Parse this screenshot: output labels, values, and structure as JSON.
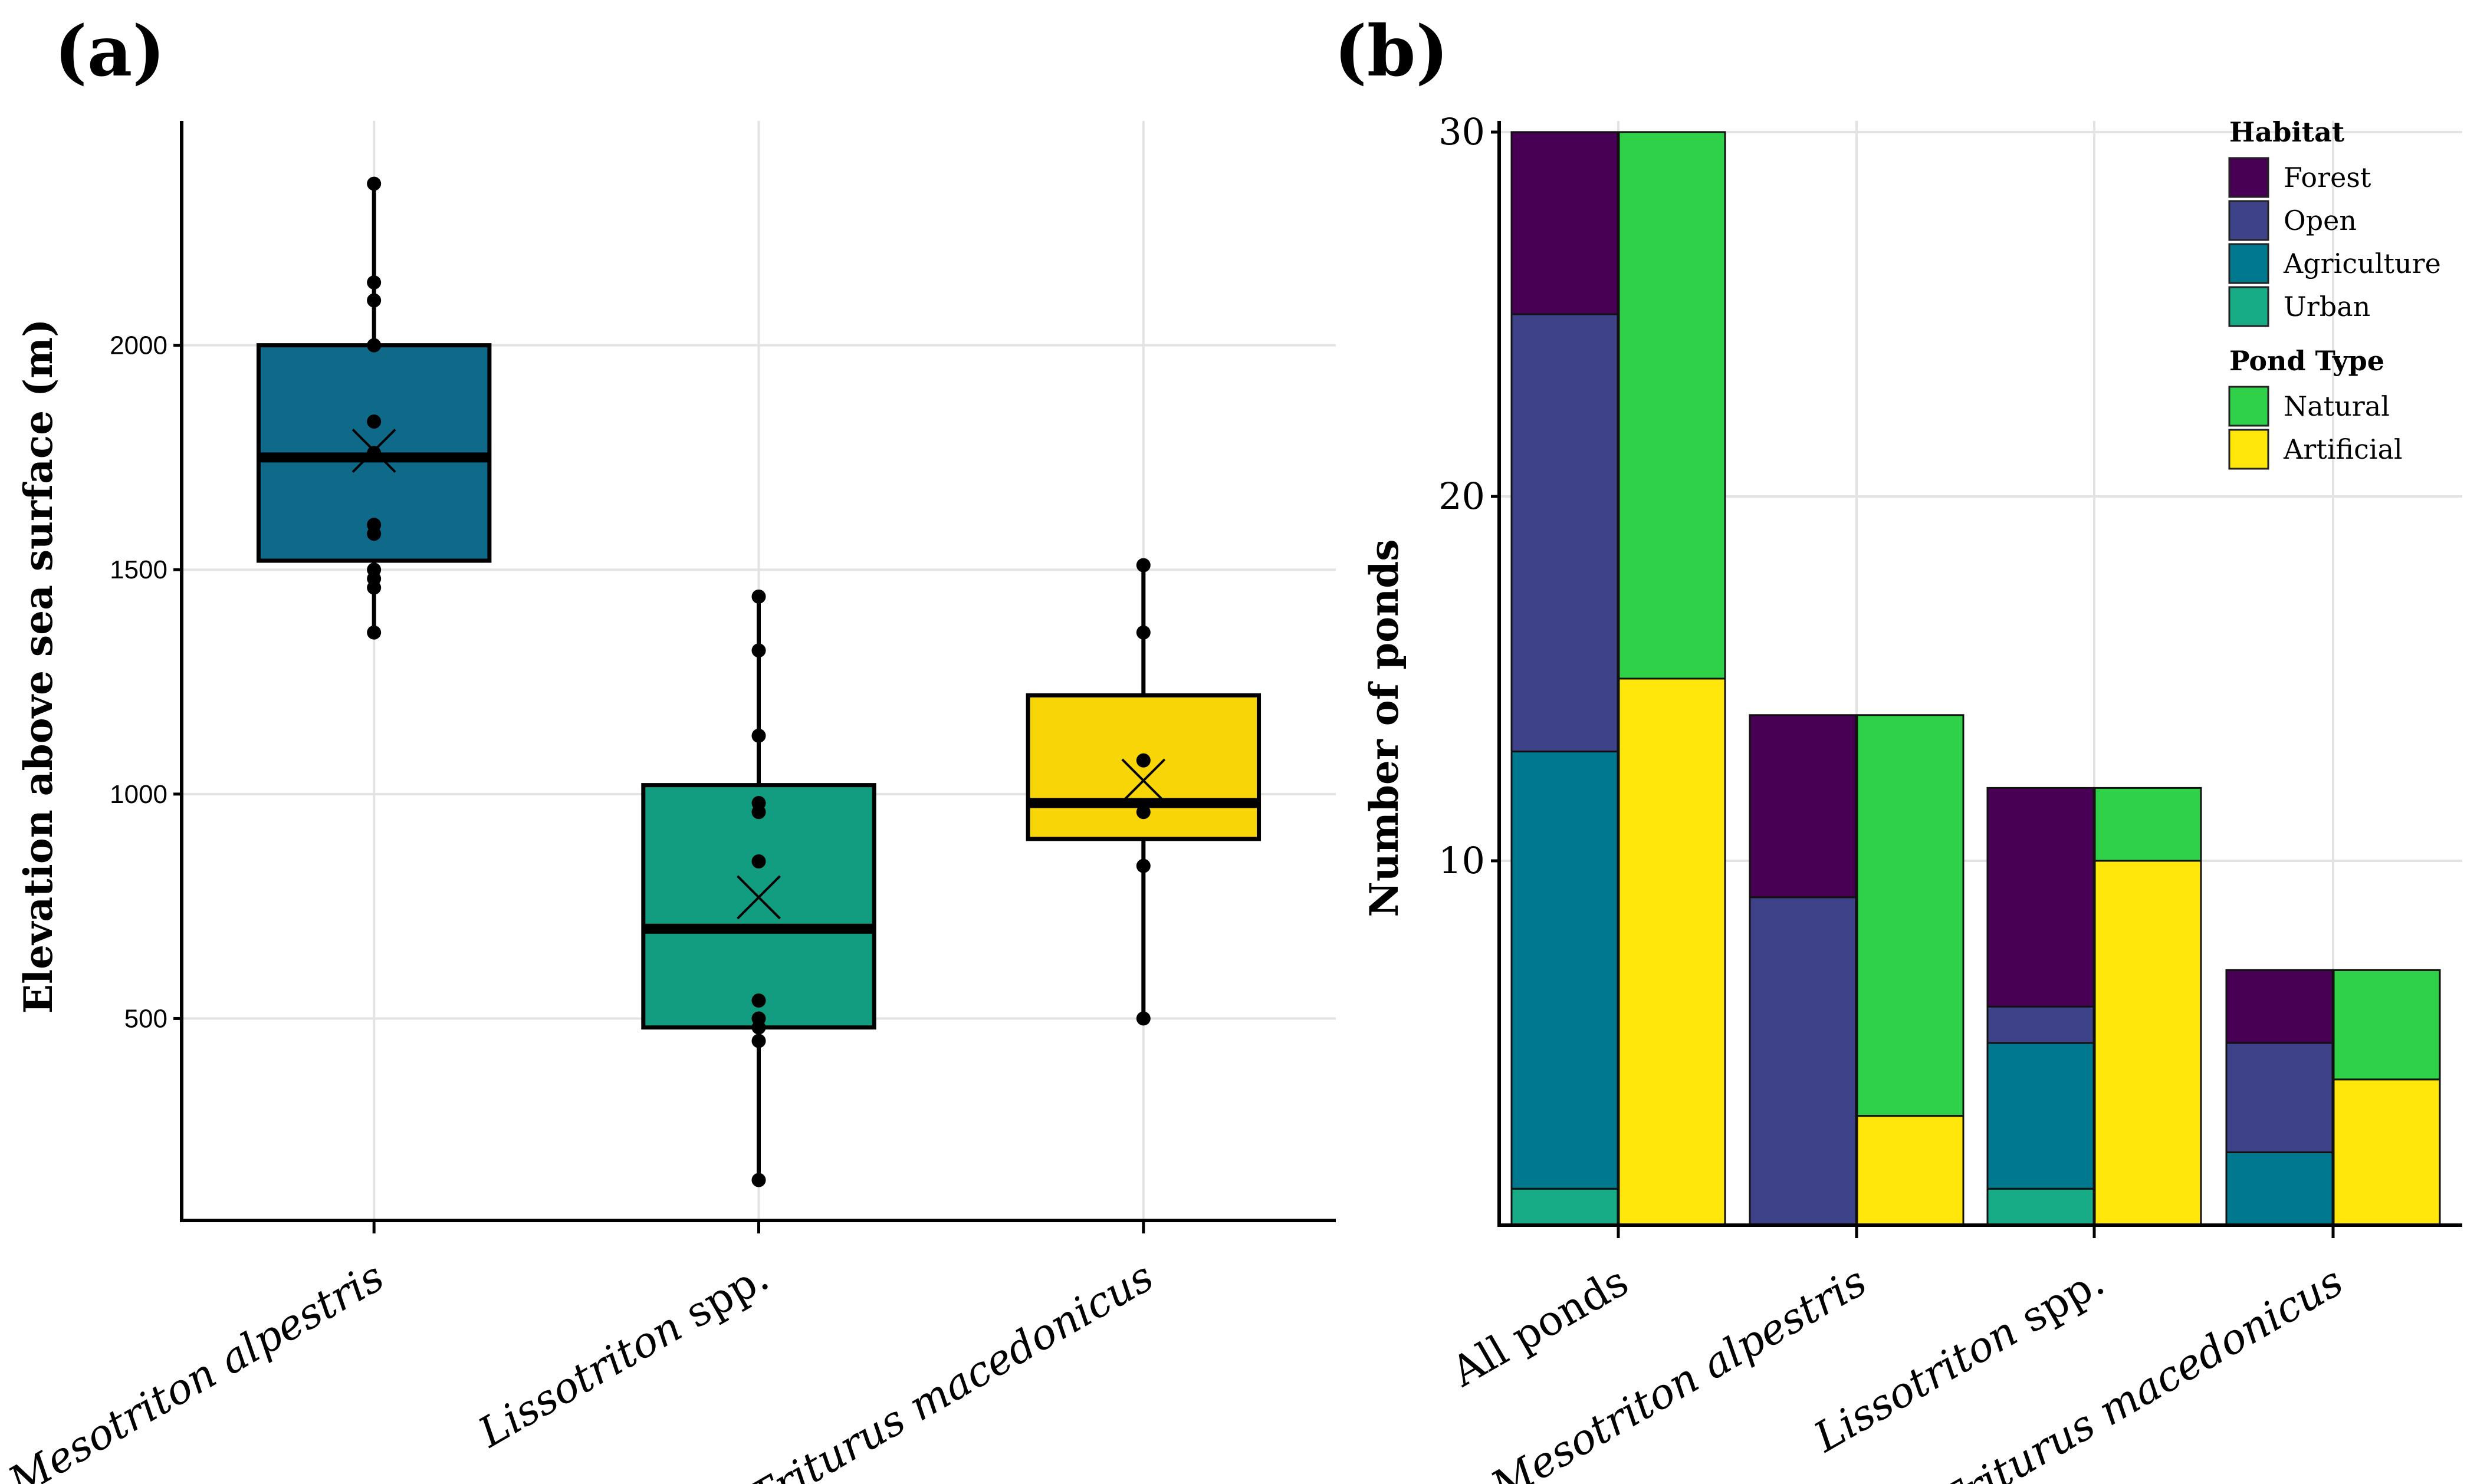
{
  "chart_data": [
    {
      "panel_label": "(a)",
      "type": "box",
      "ylabel": "Elevation above sea surface (m)",
      "yticks": [
        500,
        1000,
        1500,
        2000
      ],
      "ylim": [
        50,
        2500
      ],
      "grid": true,
      "categories": [
        "Mesotriton alpestris",
        "Lissotriton spp.",
        "Triturus macedonicus"
      ],
      "italic_parts": [
        "Mesotriton alpestris",
        "Lissotriton",
        "Triturus macedonicus"
      ],
      "plain_parts": [
        "",
        " spp.",
        ""
      ],
      "boxes": [
        {
          "name": "Mesotriton alpestris",
          "color": "#0f6a8a",
          "q1": 1520,
          "median": 1750,
          "q3": 2000,
          "mean": 1765,
          "whisker_low": 1360,
          "whisker_high": 2360,
          "points": [
            1360,
            1460,
            1480,
            1500,
            1580,
            1600,
            1760,
            1830,
            2000,
            2100,
            2140,
            2360
          ]
        },
        {
          "name": "Lissotriton spp.",
          "color": "#129c80",
          "q1": 480,
          "median": 700,
          "q3": 1020,
          "mean": 770,
          "whisker_low": 140,
          "whisker_high": 1440,
          "points": [
            140,
            450,
            480,
            500,
            540,
            850,
            960,
            980,
            1130,
            1320,
            1440
          ]
        },
        {
          "name": "Triturus macedonicus",
          "color": "#f7d506",
          "q1": 900,
          "median": 980,
          "q3": 1220,
          "mean": 1030,
          "whisker_low": 500,
          "whisker_high": 1510,
          "points": [
            500,
            840,
            960,
            1075,
            1360,
            1510
          ]
        }
      ]
    },
    {
      "panel_label": "(b)",
      "type": "stacked-bar",
      "ylabel": "Number of ponds",
      "yticks": [
        10,
        20,
        30
      ],
      "ylim": [
        0,
        30
      ],
      "grid": true,
      "legend_position": "top-right",
      "categories": [
        "All ponds",
        "Mesotriton alpestris",
        "Lissotriton spp.",
        "Triturus macedonicus"
      ],
      "italic_parts": [
        "",
        "Mesotriton alpestris",
        "Lissotriton",
        "Triturus macedonicus"
      ],
      "plain_parts": [
        "All ponds",
        "",
        " spp.",
        ""
      ],
      "legend_groups": [
        {
          "title": "Habitat",
          "items": [
            {
              "name": "Forest",
              "color": "#480054"
            },
            {
              "name": "Open",
              "color": "#3e4389"
            },
            {
              "name": "Agriculture",
              "color": "#00798f"
            },
            {
              "name": "Urban",
              "color": "#17ab86"
            }
          ]
        },
        {
          "title": "Pond Type",
          "items": [
            {
              "name": "Natural",
              "color": "#2ed147"
            },
            {
              "name": "Artificial",
              "color": "#ffe60b"
            }
          ]
        }
      ],
      "habitat_series": [
        {
          "name": "Forest",
          "color": "#480054",
          "values": [
            5,
            5,
            6,
            2
          ]
        },
        {
          "name": "Open",
          "color": "#3e4389",
          "values": [
            12,
            9,
            1,
            3
          ]
        },
        {
          "name": "Agriculture",
          "color": "#00798f",
          "values": [
            12,
            0,
            4,
            2
          ]
        },
        {
          "name": "Urban",
          "color": "#17ab86",
          "values": [
            1,
            0,
            1,
            0
          ]
        }
      ],
      "pond_type_series": [
        {
          "name": "Natural",
          "color": "#2ed147",
          "values": [
            15,
            11,
            2,
            3
          ]
        },
        {
          "name": "Artificial",
          "color": "#ffe60b",
          "values": [
            15,
            3,
            10,
            4
          ]
        }
      ]
    }
  ]
}
